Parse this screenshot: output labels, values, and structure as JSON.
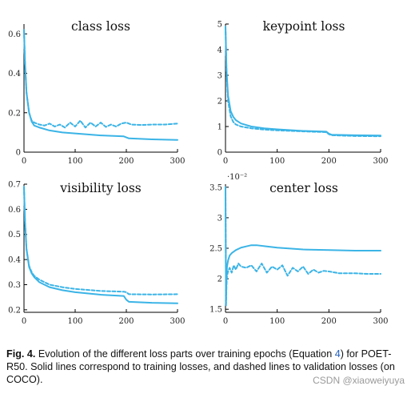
{
  "chart_data": [
    {
      "type": "line",
      "title": "class loss",
      "xlabel": "",
      "ylabel": "",
      "xlim": [
        0,
        300
      ],
      "ylim": [
        0,
        0.65
      ],
      "xticks": [
        "0",
        "100",
        "200",
        "300"
      ],
      "yticks": [
        "0",
        "0.2",
        "0.4",
        "0.6"
      ],
      "grid": false,
      "legend": "none",
      "series": [
        {
          "line_style": "solid",
          "x": [
            0,
            2,
            5,
            10,
            15,
            20,
            30,
            50,
            75,
            100,
            150,
            195,
            200,
            205,
            250,
            300
          ],
          "y": [
            0.62,
            0.45,
            0.3,
            0.2,
            0.155,
            0.135,
            0.125,
            0.11,
            0.1,
            0.095,
            0.085,
            0.08,
            0.075,
            0.07,
            0.065,
            0.062
          ]
        },
        {
          "line_style": "dashed",
          "x": [
            0,
            2,
            5,
            10,
            15,
            20,
            30,
            40,
            50,
            60,
            70,
            80,
            90,
            100,
            110,
            120,
            130,
            140,
            150,
            160,
            170,
            180,
            190,
            200,
            210,
            230,
            250,
            275,
            300
          ],
          "y": [
            0.62,
            0.45,
            0.3,
            0.2,
            0.16,
            0.15,
            0.14,
            0.135,
            0.145,
            0.13,
            0.14,
            0.125,
            0.15,
            0.13,
            0.16,
            0.125,
            0.15,
            0.13,
            0.15,
            0.128,
            0.14,
            0.13,
            0.145,
            0.15,
            0.14,
            0.138,
            0.14,
            0.14,
            0.145
          ]
        }
      ]
    },
    {
      "type": "line",
      "title": "keypoint loss",
      "xlabel": "",
      "ylabel": "",
      "xlim": [
        0,
        300
      ],
      "ylim": [
        0,
        5
      ],
      "xticks": [
        "0",
        "100",
        "200",
        "300"
      ],
      "yticks": [
        "0",
        "1",
        "2",
        "3",
        "4",
        "5"
      ],
      "grid": false,
      "legend": "none",
      "series": [
        {
          "line_style": "solid",
          "x": [
            0,
            2,
            5,
            10,
            15,
            20,
            30,
            50,
            75,
            100,
            150,
            195,
            200,
            205,
            250,
            300
          ],
          "y": [
            4.9,
            3.2,
            2.2,
            1.6,
            1.38,
            1.25,
            1.12,
            1.0,
            0.93,
            0.89,
            0.83,
            0.8,
            0.72,
            0.68,
            0.66,
            0.65
          ]
        },
        {
          "line_style": "dashed",
          "x": [
            0,
            2,
            5,
            10,
            15,
            20,
            30,
            50,
            75,
            100,
            150,
            195,
            200,
            205,
            250,
            300
          ],
          "y": [
            4.9,
            3.1,
            2.0,
            1.4,
            1.18,
            1.08,
            1.0,
            0.93,
            0.88,
            0.85,
            0.81,
            0.78,
            0.7,
            0.66,
            0.63,
            0.62
          ]
        }
      ]
    },
    {
      "type": "line",
      "title": "visibility loss",
      "xlabel": "",
      "ylabel": "",
      "xlim": [
        0,
        300
      ],
      "ylim": [
        0.19,
        0.7
      ],
      "xticks": [
        "0",
        "100",
        "200",
        "300"
      ],
      "yticks": [
        "0.2",
        "0.3",
        "0.4",
        "0.5",
        "0.6",
        "0.7"
      ],
      "grid": false,
      "legend": "none",
      "series": [
        {
          "line_style": "solid",
          "x": [
            0,
            2,
            5,
            10,
            15,
            20,
            30,
            50,
            75,
            100,
            150,
            195,
            200,
            205,
            250,
            300
          ],
          "y": [
            0.69,
            0.55,
            0.44,
            0.37,
            0.345,
            0.33,
            0.31,
            0.29,
            0.278,
            0.27,
            0.26,
            0.255,
            0.24,
            0.232,
            0.228,
            0.226
          ]
        },
        {
          "line_style": "dashed",
          "x": [
            0,
            2,
            5,
            10,
            15,
            20,
            30,
            50,
            75,
            100,
            150,
            195,
            200,
            205,
            250,
            300
          ],
          "y": [
            0.69,
            0.55,
            0.44,
            0.375,
            0.35,
            0.335,
            0.32,
            0.3,
            0.29,
            0.283,
            0.275,
            0.272,
            0.27,
            0.262,
            0.261,
            0.262
          ]
        }
      ]
    },
    {
      "type": "line",
      "title": "center loss",
      "xlabel": "",
      "ylabel": "",
      "axis_multiplier": "·10⁻²",
      "xlim": [
        0,
        300
      ],
      "ylim": [
        1.45,
        3.55
      ],
      "xticks": [
        "0",
        "100",
        "200",
        "300"
      ],
      "yticks": [
        "1.5",
        "2",
        "2.5",
        "3",
        "3.5"
      ],
      "grid": false,
      "legend": "none",
      "series": [
        {
          "line_style": "solid",
          "x": [
            0,
            1,
            2,
            3,
            5,
            8,
            12,
            20,
            30,
            40,
            50,
            60,
            80,
            100,
            150,
            200,
            250,
            300
          ],
          "y": [
            3.5,
            1.6,
            2.05,
            2.2,
            2.3,
            2.38,
            2.42,
            2.47,
            2.51,
            2.53,
            2.55,
            2.55,
            2.53,
            2.51,
            2.48,
            2.47,
            2.46,
            2.46
          ]
        },
        {
          "line_style": "dashed",
          "x": [
            0,
            1,
            2,
            3,
            5,
            8,
            12,
            16,
            20,
            25,
            30,
            40,
            50,
            60,
            70,
            80,
            90,
            100,
            110,
            120,
            130,
            140,
            150,
            160,
            170,
            180,
            190,
            200,
            220,
            250,
            275,
            300
          ],
          "y": [
            3.5,
            1.55,
            1.9,
            2.05,
            2.12,
            2.18,
            2.1,
            2.22,
            2.15,
            2.25,
            2.2,
            2.18,
            2.22,
            2.12,
            2.25,
            2.1,
            2.2,
            2.15,
            2.22,
            2.05,
            2.18,
            2.12,
            2.2,
            2.08,
            2.15,
            2.1,
            2.13,
            2.12,
            2.09,
            2.09,
            2.08,
            2.08
          ]
        }
      ]
    }
  ],
  "series_color": "#3bb4e6",
  "caption": {
    "label": "Fig. 4.",
    "text_before_ref": "Evolution of the different loss parts over training epochs (Equation",
    "equation_ref": "4",
    "text_after_ref": ") for POET-R50. Solid lines correspond to training losses, and dashed lines to validation losses (on COCO).",
    "ref_color": "#1f5fbf"
  },
  "watermark": "CSDN @xiaoweiyuya"
}
